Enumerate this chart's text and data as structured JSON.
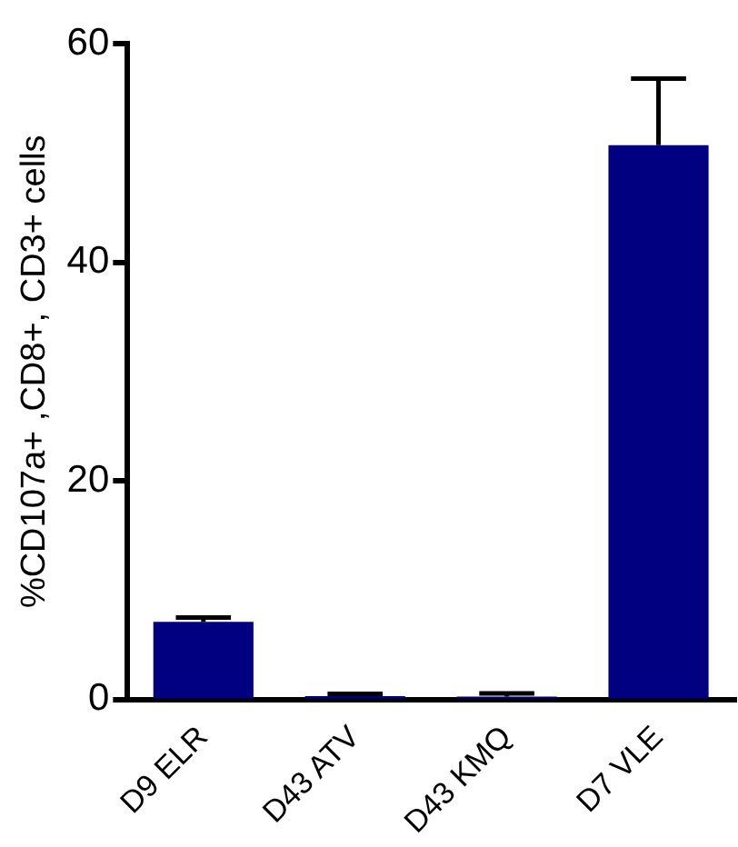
{
  "chart_data": {
    "type": "bar",
    "ylabel": "%CD107a+ ,CD8+, CD3+ cells",
    "categories": [
      "D9 ELR",
      "D43 ATV",
      "D43 KMQ",
      "D7 VLE"
    ],
    "values": [
      7.1,
      0.3,
      0.25,
      50.7
    ],
    "errors": [
      [
        7.1,
        7.5
      ],
      [
        0.3,
        0.5
      ],
      [
        0.25,
        0.55
      ],
      [
        50.7,
        56.8
      ]
    ],
    "color": "#000080",
    "ylim": [
      0,
      60
    ],
    "yticks": [
      0,
      20,
      40,
      60
    ],
    "grid": false,
    "legend": false
  }
}
